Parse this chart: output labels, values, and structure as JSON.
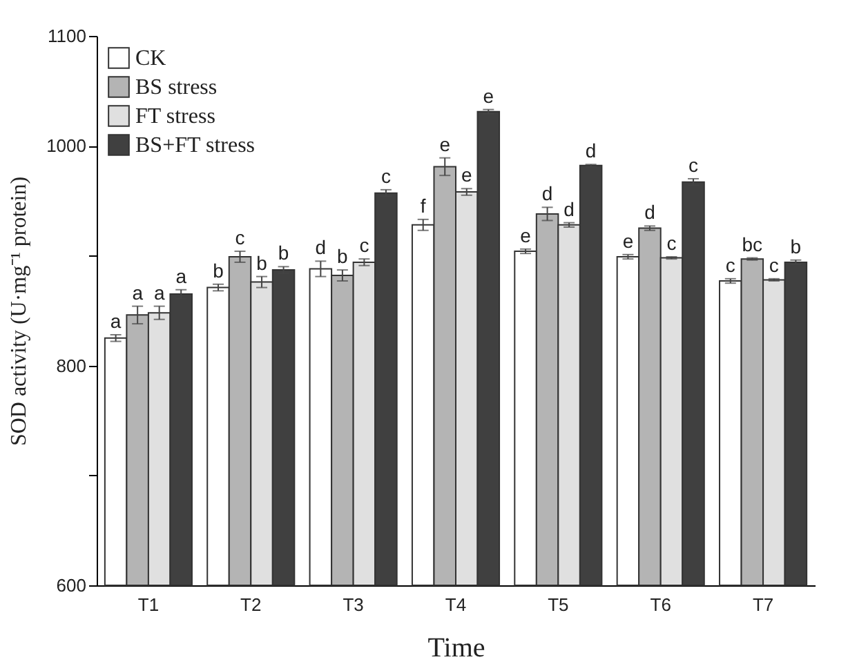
{
  "chart_data": {
    "type": "bar",
    "xlabel": "Time",
    "ylabel": "SOD activity (U·mg⁻¹ protein)",
    "categories": [
      "T1",
      "T2",
      "T3",
      "T4",
      "T5",
      "T6",
      "T7"
    ],
    "series": [
      {
        "name": "CK",
        "color": "#ffffff",
        "values": [
          825,
          871,
          888,
          928,
          904,
          899,
          877
        ],
        "errors": [
          3,
          3,
          7,
          5,
          2,
          2,
          2
        ],
        "value_labels": [
          "a",
          "b",
          "d",
          "f",
          "e",
          "e",
          "c"
        ]
      },
      {
        "name": "BS stress",
        "color": "#b4b4b4",
        "values": [
          846,
          899,
          882,
          981,
          938,
          925,
          897
        ],
        "errors": [
          8,
          5,
          5,
          8,
          6,
          2,
          1
        ],
        "value_labels": [
          "a",
          "c",
          "b",
          "e",
          "d",
          "d",
          "bc"
        ]
      },
      {
        "name": "FT stress",
        "color": "#e0e0e0",
        "values": [
          848,
          876,
          894,
          958,
          928,
          898,
          878
        ],
        "errors": [
          6,
          5,
          3,
          3,
          2,
          1,
          1
        ],
        "value_labels": [
          "a",
          "b",
          "c",
          "e",
          "d",
          "c",
          "c"
        ]
      },
      {
        "name": "BS+FT stress",
        "color": "#404040",
        "values": [
          865,
          887,
          957,
          1031,
          982,
          967,
          894
        ],
        "errors": [
          4,
          3,
          3,
          2,
          1,
          3,
          2
        ],
        "value_labels": [
          "a",
          "b",
          "c",
          "e",
          "d",
          "c",
          "b"
        ]
      }
    ],
    "ylim": [
      600,
      1100
    ],
    "yticks": [
      600,
      {
        "value": 700,
        "label": null
      },
      800,
      {
        "value": 900,
        "label": null
      },
      1000,
      1100
    ],
    "grid": false,
    "legend": "top left"
  }
}
